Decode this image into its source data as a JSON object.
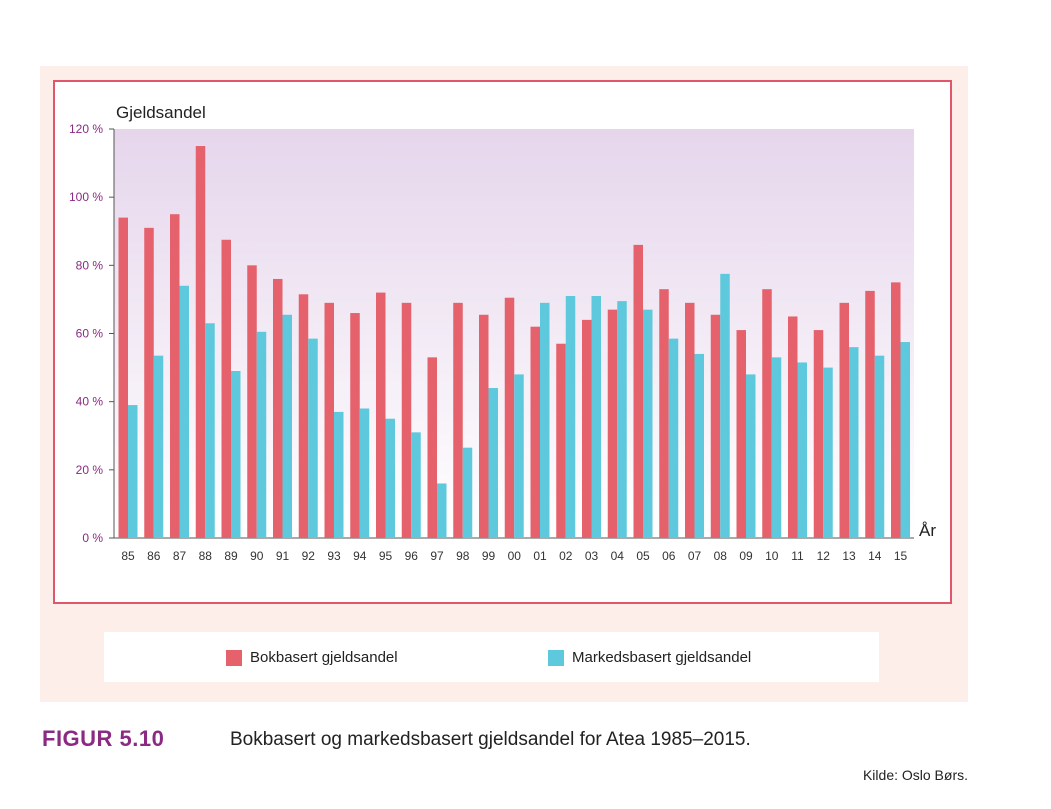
{
  "figure": {
    "label": "FIGUR 5.10",
    "caption": "Bokbasert og markedsbasert gjeldsandel for Atea 1985–2015.",
    "source": "Kilde: Oslo Børs."
  },
  "colors": {
    "book": "#e5616b",
    "market": "#5ec9dc",
    "frame": "#e0566a",
    "tick_label": "#8b2a82",
    "panel": "#fdeee9"
  },
  "chart_data": {
    "type": "bar",
    "ylabel": "Gjeldsandel",
    "xlabel": "År",
    "ylim": [
      0,
      120
    ],
    "yticks": [
      0,
      20,
      40,
      60,
      80,
      100,
      120
    ],
    "ytick_labels": [
      "0 %",
      "20 %",
      "40 %",
      "60 %",
      "80 %",
      "100 %",
      "120 %"
    ],
    "categories": [
      "85",
      "86",
      "87",
      "88",
      "89",
      "90",
      "91",
      "92",
      "93",
      "94",
      "95",
      "96",
      "97",
      "98",
      "99",
      "00",
      "01",
      "02",
      "03",
      "04",
      "05",
      "06",
      "07",
      "08",
      "09",
      "10",
      "11",
      "12",
      "13",
      "14",
      "15"
    ],
    "series": [
      {
        "name": "Bokbasert gjeldsandel",
        "color": "#e5616b",
        "values": [
          94,
          91,
          95,
          115,
          87.5,
          80,
          76,
          71.5,
          69,
          66,
          72,
          69,
          53,
          69,
          65.5,
          70.5,
          62,
          57,
          64,
          67,
          86,
          73,
          69,
          65.5,
          61,
          73,
          65,
          61,
          69,
          72.5,
          75
        ]
      },
      {
        "name": "Markedsbasert gjeldsandel",
        "color": "#5ec9dc",
        "values": [
          39,
          53.5,
          74,
          63,
          49,
          60.5,
          65.5,
          58.5,
          37,
          38,
          35,
          31,
          16,
          26.5,
          44,
          48,
          69,
          71,
          71,
          69.5,
          67,
          58.5,
          54,
          77.5,
          48,
          53,
          51.5,
          50,
          56,
          53.5,
          57.5
        ]
      }
    ],
    "legend_position": "bottom",
    "grid": false
  }
}
